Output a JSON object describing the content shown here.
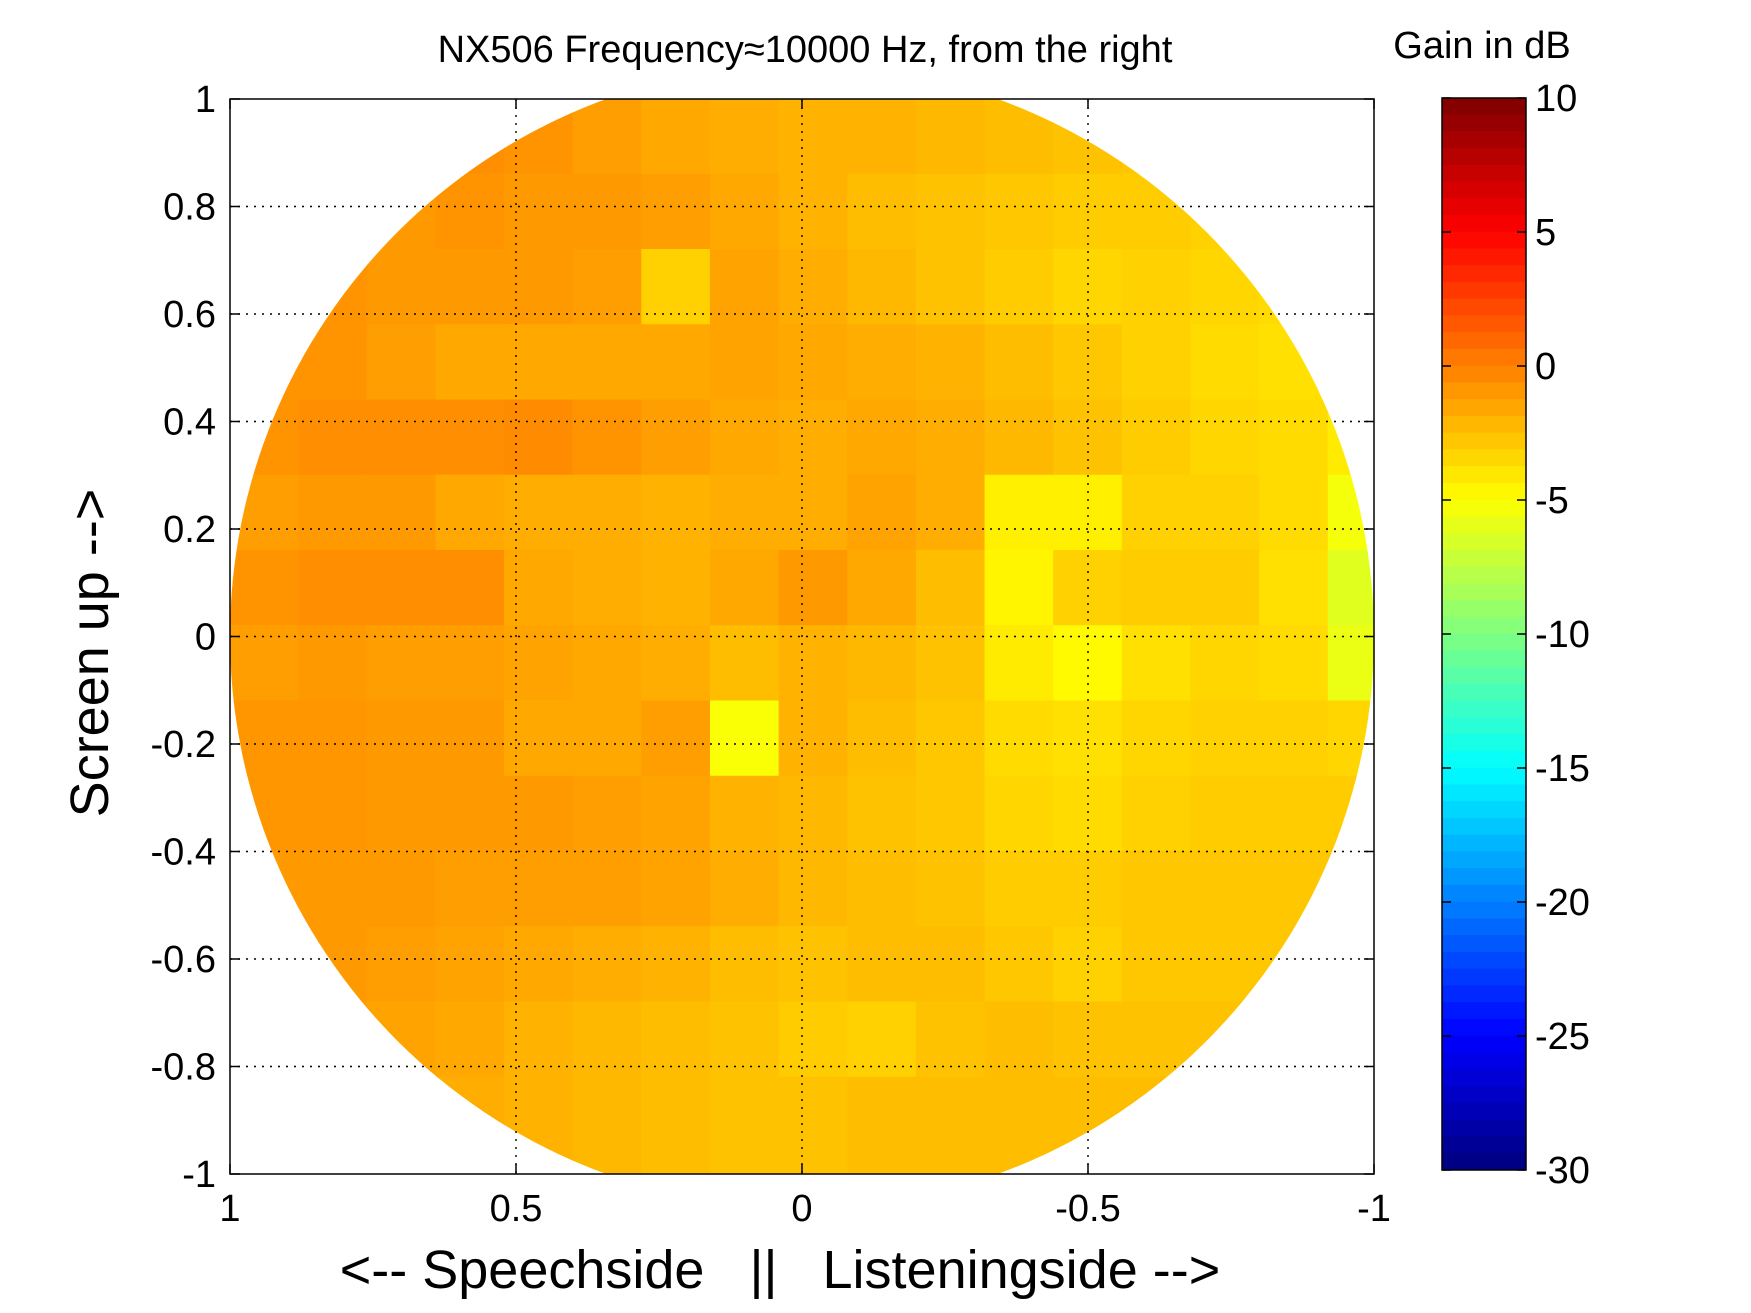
{
  "chart_data": {
    "type": "heatmap",
    "title": "NX506 Frequency≈10000 Hz, from the right",
    "xlabel": "<-- Speechside   ||   Listeningside -->",
    "ylabel": "Screen up -->",
    "colorbar_label": "Gain in dB",
    "xlim": [
      1,
      -1
    ],
    "ylim": [
      -1,
      1
    ],
    "x_ticks": [
      1,
      0.5,
      0,
      -0.5,
      -1
    ],
    "x_tick_labels": [
      "1",
      "0.5",
      "0",
      "-0.5",
      "-1"
    ],
    "y_ticks": [
      1,
      0.8,
      0.6,
      0.4,
      0.2,
      0,
      -0.2,
      -0.4,
      -0.6,
      -0.8,
      -1
    ],
    "y_tick_labels": [
      "1",
      "0.8",
      "0.6",
      "0.4",
      "0.2",
      "0",
      "-0.2",
      "-0.4",
      "-0.6",
      "-0.8",
      "-1"
    ],
    "clim": [
      -30,
      10
    ],
    "colorbar_ticks": [
      10,
      5,
      0,
      -5,
      -10,
      -15,
      -20,
      -25,
      -30
    ],
    "colorbar_tick_labels": [
      "10",
      "5",
      "0",
      "-5",
      "-10",
      "-15",
      "-20",
      "-25",
      "-30"
    ],
    "colormap": "jet",
    "grid": true,
    "grid_style": "dotted",
    "shape": "unit-disc",
    "x_edges": [
      1.0,
      0.88,
      0.76,
      0.64,
      0.52,
      0.4,
      0.28,
      0.16,
      0.04,
      -0.08,
      -0.2,
      -0.32,
      -0.44,
      -0.56,
      -0.68,
      -0.8,
      -0.92,
      -1.0
    ],
    "y_edges": [
      1.0,
      0.86,
      0.72,
      0.58,
      0.44,
      0.3,
      0.16,
      0.02,
      -0.12,
      -0.26,
      -0.4,
      -0.54,
      -0.68,
      -0.82,
      -1.0
    ],
    "gain_db": [
      [
        -1.0,
        -1.0,
        -1.2,
        -0.6,
        -0.8,
        -1.2,
        -1.6,
        -1.8,
        -2.0,
        -2.0,
        -2.2,
        -2.4,
        -2.6,
        -2.8,
        -2.8,
        -3.0,
        -3.0
      ],
      [
        -0.9,
        -0.9,
        -1.0,
        -0.8,
        -1.0,
        -1.0,
        -1.2,
        -1.6,
        -2.0,
        -2.4,
        -2.6,
        -2.8,
        -3.0,
        -3.0,
        -3.2,
        -3.2,
        -3.4
      ],
      [
        -0.9,
        -0.8,
        -1.0,
        -1.0,
        -1.0,
        -1.2,
        -3.2,
        -1.4,
        -1.8,
        -2.2,
        -2.6,
        -3.0,
        -3.4,
        -3.2,
        -3.4,
        -3.6,
        -3.8
      ],
      [
        -0.8,
        -0.8,
        -1.2,
        -1.6,
        -1.6,
        -1.6,
        -1.6,
        -1.4,
        -1.6,
        -1.8,
        -2.0,
        -2.4,
        -2.8,
        -3.2,
        -3.6,
        -3.8,
        -4.0
      ],
      [
        -0.8,
        -0.6,
        -0.6,
        -0.6,
        -0.5,
        -0.8,
        -1.2,
        -1.6,
        -1.8,
        -1.6,
        -1.8,
        -2.2,
        -2.6,
        -3.0,
        -3.4,
        -3.6,
        -4.2
      ],
      [
        -1.2,
        -1.0,
        -1.0,
        -1.6,
        -1.8,
        -1.8,
        -2.0,
        -1.8,
        -1.8,
        -1.4,
        -1.8,
        -4.4,
        -4.4,
        -3.2,
        -3.2,
        -3.6,
        -5.4
      ],
      [
        -0.8,
        -0.6,
        -0.6,
        -0.6,
        -1.6,
        -1.8,
        -2.0,
        -1.6,
        -1.0,
        -1.6,
        -2.4,
        -4.6,
        -3.2,
        -3.0,
        -3.0,
        -3.8,
        -6.2
      ],
      [
        -1.2,
        -1.0,
        -1.2,
        -1.2,
        -1.4,
        -1.6,
        -1.8,
        -2.4,
        -2.0,
        -2.2,
        -2.6,
        -4.2,
        -4.8,
        -3.8,
        -3.4,
        -3.6,
        -5.8
      ],
      [
        -0.9,
        -0.9,
        -1.0,
        -1.0,
        -1.6,
        -1.6,
        -1.2,
        -5.2,
        -2.0,
        -2.4,
        -2.8,
        -3.6,
        -3.8,
        -3.4,
        -3.2,
        -3.2,
        -3.4
      ],
      [
        -0.9,
        -0.9,
        -1.0,
        -1.0,
        -1.0,
        -1.2,
        -1.4,
        -2.0,
        -2.2,
        -2.6,
        -2.8,
        -3.4,
        -3.6,
        -3.2,
        -3.0,
        -3.0,
        -3.0
      ],
      [
        -1.0,
        -1.0,
        -1.0,
        -1.2,
        -1.2,
        -1.2,
        -1.4,
        -1.8,
        -2.2,
        -2.4,
        -2.6,
        -3.0,
        -3.0,
        -2.8,
        -2.8,
        -2.8,
        -2.8
      ],
      [
        -1.0,
        -1.0,
        -1.2,
        -1.4,
        -1.6,
        -1.8,
        -2.0,
        -2.4,
        -2.6,
        -2.4,
        -2.4,
        -2.8,
        -3.2,
        -2.8,
        -2.8,
        -2.8,
        -2.6
      ],
      [
        -1.2,
        -1.2,
        -1.4,
        -1.6,
        -2.0,
        -2.2,
        -2.4,
        -2.6,
        -3.0,
        -3.2,
        -2.6,
        -2.4,
        -2.6,
        -2.6,
        -2.6,
        -2.6,
        -2.6
      ],
      [
        -1.4,
        -1.4,
        -1.6,
        -1.8,
        -2.0,
        -2.2,
        -2.4,
        -2.6,
        -2.6,
        -2.4,
        -2.4,
        -2.4,
        -2.4,
        -2.4,
        -2.4,
        -2.4,
        -2.4
      ]
    ]
  }
}
